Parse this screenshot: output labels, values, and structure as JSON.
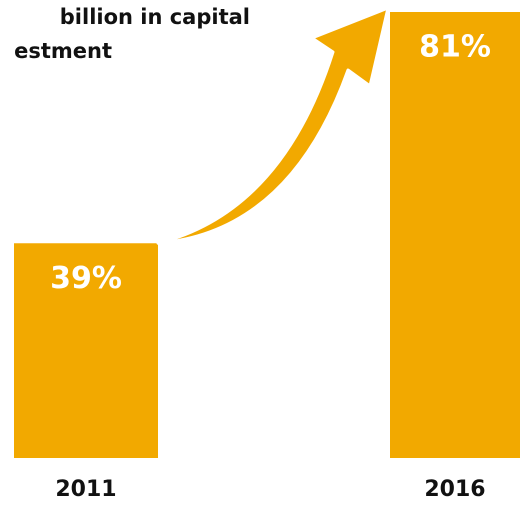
{
  "chart_data": {
    "type": "bar",
    "title_lines": [
      "billion in capital",
      "estment"
    ],
    "categories": [
      "2011",
      "2016"
    ],
    "values": [
      39,
      81
    ],
    "value_labels": [
      "39%",
      "81%"
    ],
    "color": "#f2a900"
  }
}
